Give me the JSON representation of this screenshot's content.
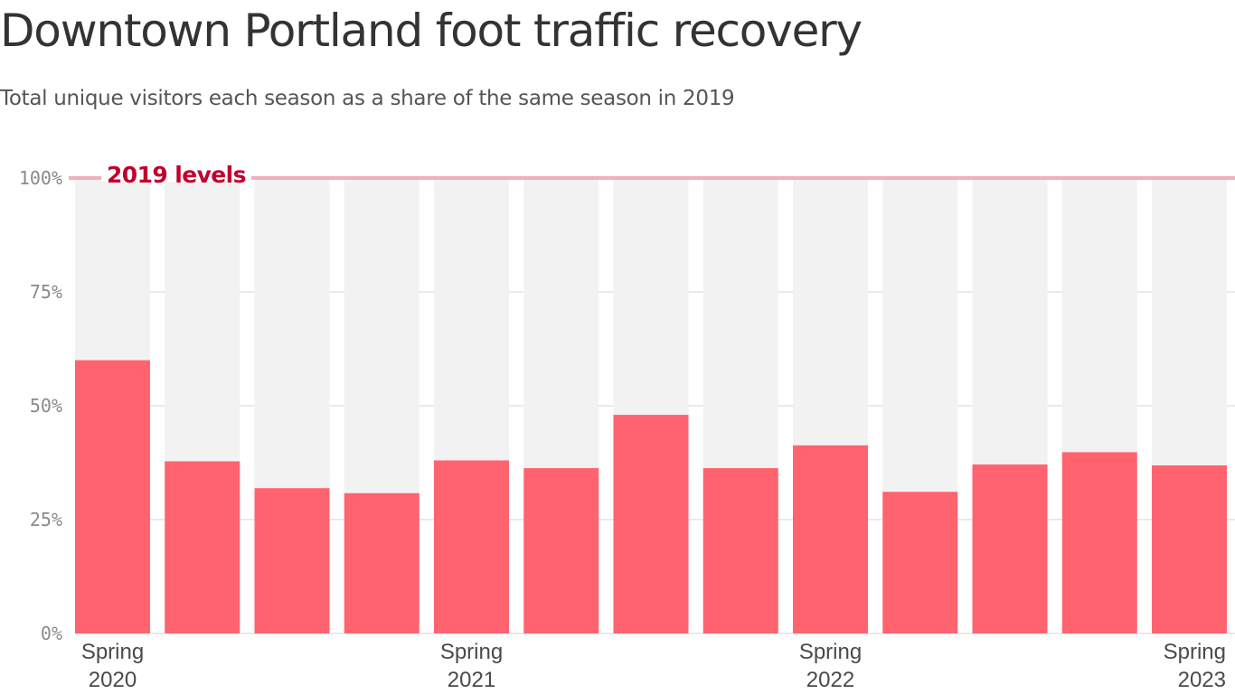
{
  "title": "Downtown Portland foot traffic recovery",
  "subtitle": "Total unique visitors each season as a share of the same season in 2019",
  "colors": {
    "bar": "#ff6370",
    "bar_track": "#f2f2f2",
    "grid": "#e4e4e4",
    "reference_line": "#eeb0ba",
    "reference_label": "#c2002f"
  },
  "chart_data": {
    "type": "bar",
    "title": "Downtown Portland foot traffic recovery",
    "subtitle": "Total unique visitors each season as a share of the same season in 2019",
    "x_tick_labels": [
      {
        "index": 0,
        "lines": [
          "Spring",
          "2020"
        ]
      },
      {
        "index": 4,
        "lines": [
          "Spring",
          "2021"
        ]
      },
      {
        "index": 8,
        "lines": [
          "Spring",
          "2022"
        ]
      },
      {
        "index": 12,
        "lines": [
          "Spring",
          "2023"
        ]
      }
    ],
    "values": [
      60,
      37.8,
      31.9,
      30.8,
      38,
      36.3,
      48,
      36.3,
      41.3,
      31.1,
      37.1,
      39.8,
      36.9
    ],
    "y_ticks": [
      "0%",
      "25%",
      "50%",
      "75%",
      "100%"
    ],
    "y_tick_values": [
      0,
      25,
      50,
      75,
      100
    ],
    "ylim": [
      0,
      100
    ],
    "grid": true,
    "reference_line": {
      "value": 100,
      "label": "2019 levels"
    },
    "xlabel": "",
    "ylabel": ""
  }
}
